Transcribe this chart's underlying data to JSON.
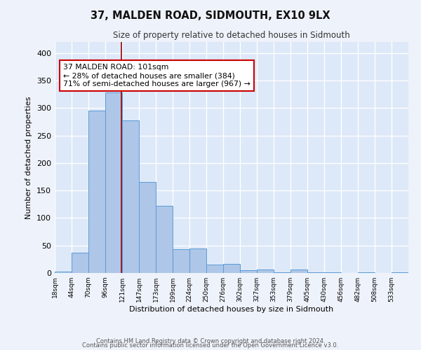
{
  "title": "37, MALDEN ROAD, SIDMOUTH, EX10 9LX",
  "subtitle": "Size of property relative to detached houses in Sidmouth",
  "xlabel": "Distribution of detached houses by size in Sidmouth",
  "ylabel": "Number of detached properties",
  "bar_color": "#aec6e8",
  "bar_edge_color": "#5b9bd5",
  "background_color": "#dde8f8",
  "grid_color": "#ffffff",
  "bin_labels": [
    "18sqm",
    "44sqm",
    "70sqm",
    "96sqm",
    "121sqm",
    "147sqm",
    "173sqm",
    "199sqm",
    "224sqm",
    "250sqm",
    "276sqm",
    "302sqm",
    "327sqm",
    "353sqm",
    "379sqm",
    "405sqm",
    "430sqm",
    "456sqm",
    "482sqm",
    "508sqm",
    "533sqm"
  ],
  "bar_heights": [
    3,
    37,
    295,
    328,
    278,
    165,
    122,
    43,
    45,
    15,
    17,
    5,
    7,
    1,
    6,
    1,
    1,
    0,
    1,
    0,
    1
  ],
  "ylim": [
    0,
    420
  ],
  "yticks": [
    0,
    50,
    100,
    150,
    200,
    250,
    300,
    350,
    400
  ],
  "property_line_x": 3.96,
  "property_line_color": "#990000",
  "annotation_text": "37 MALDEN ROAD: 101sqm\n← 28% of detached houses are smaller (384)\n71% of semi-detached houses are larger (967) →",
  "annotation_box_color": "#ffffff",
  "annotation_box_edge_color": "#cc0000",
  "footer_line1": "Contains HM Land Registry data © Crown copyright and database right 2024.",
  "footer_line2": "Contains public sector information licensed under the Open Government Licence v3.0.",
  "fig_facecolor": "#eef2fa"
}
